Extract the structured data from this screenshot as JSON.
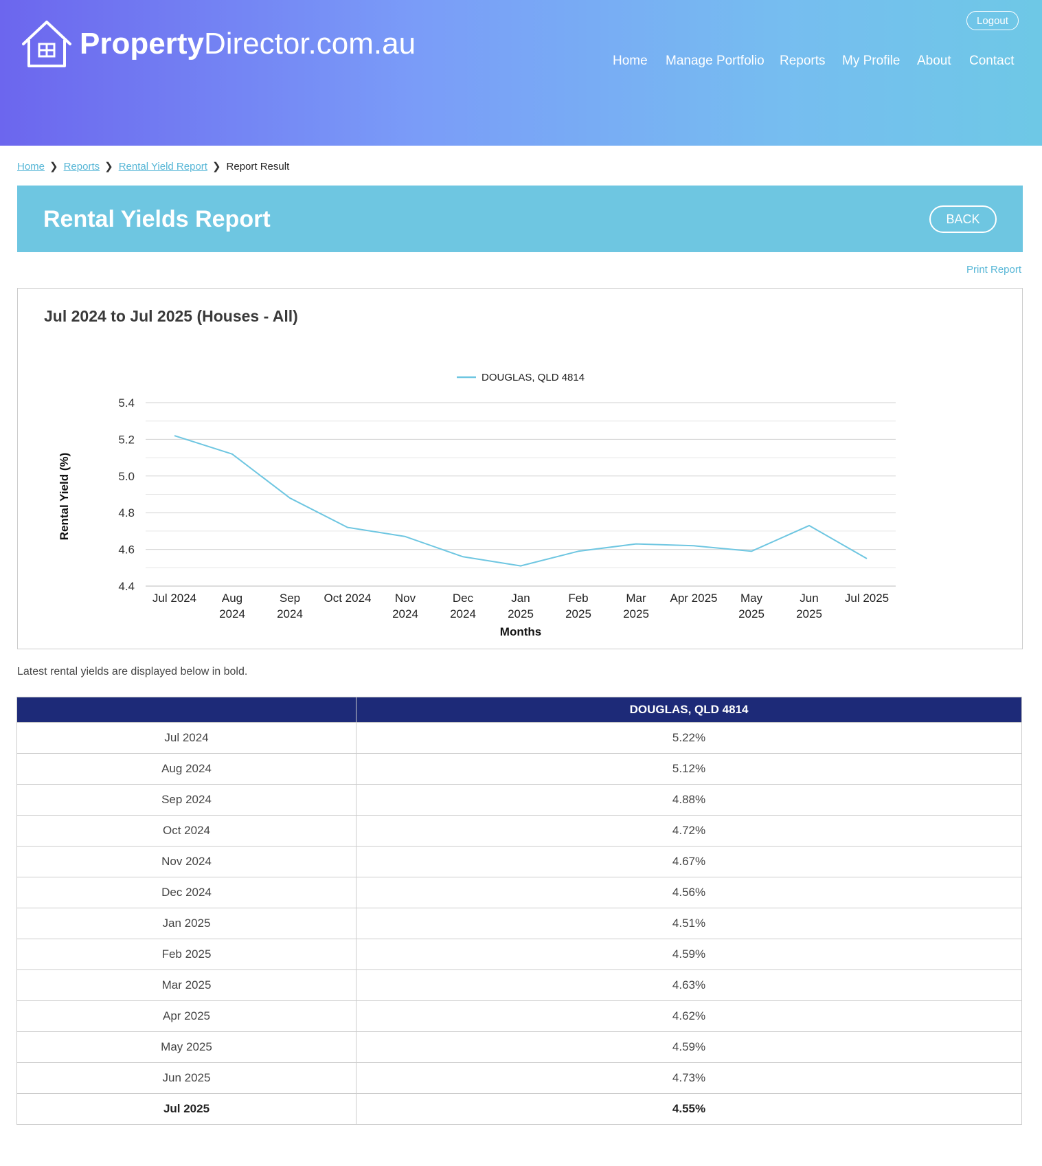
{
  "header": {
    "logo_bold": "Property",
    "logo_light": "Director.com.au",
    "logout_label": "Logout",
    "nav": [
      "Home",
      "Manage Portfolio",
      "Reports",
      "My Profile",
      "About",
      "Contact"
    ]
  },
  "breadcrumb": {
    "links": [
      "Home",
      "Reports",
      "Rental Yield Report"
    ],
    "current": "Report Result"
  },
  "page": {
    "title": "Rental Yields Report",
    "back_label": "BACK",
    "print_label": "Print Report"
  },
  "chart_section": {
    "heading": "Jul 2024 to Jul 2025 (Houses - All)"
  },
  "chart_data": {
    "type": "line",
    "categories": [
      [
        "Jul 2024"
      ],
      [
        "Aug",
        "2024"
      ],
      [
        "Sep",
        "2024"
      ],
      [
        "Oct 2024"
      ],
      [
        "Nov",
        "2024"
      ],
      [
        "Dec",
        "2024"
      ],
      [
        "Jan",
        "2025"
      ],
      [
        "Feb",
        "2025"
      ],
      [
        "Mar",
        "2025"
      ],
      [
        "Apr 2025"
      ],
      [
        "May",
        "2025"
      ],
      [
        "Jun",
        "2025"
      ],
      [
        "Jul 2025"
      ]
    ],
    "series": [
      {
        "name": "DOUGLAS, QLD 4814",
        "color": "#6ec6e1",
        "values": [
          5.22,
          5.12,
          4.88,
          4.72,
          4.67,
          4.56,
          4.51,
          4.59,
          4.63,
          4.62,
          4.59,
          4.73,
          4.55
        ]
      }
    ],
    "xlabel": "Months",
    "ylabel": "Rental Yield (%)",
    "ylim": [
      4.4,
      5.4
    ],
    "yticks": [
      "4.4",
      "4.6",
      "4.8",
      "5.0",
      "5.2",
      "5.4"
    ],
    "grid": true,
    "legend": "top-center"
  },
  "note": "Latest rental yields are displayed below in bold.",
  "table": {
    "header_left": "",
    "header_right": "DOUGLAS, QLD 4814",
    "rows": [
      [
        "Jul 2024",
        "5.22%"
      ],
      [
        "Aug 2024",
        "5.12%"
      ],
      [
        "Sep 2024",
        "4.88%"
      ],
      [
        "Oct 2024",
        "4.72%"
      ],
      [
        "Nov 2024",
        "4.67%"
      ],
      [
        "Dec 2024",
        "4.56%"
      ],
      [
        "Jan 2025",
        "4.51%"
      ],
      [
        "Feb 2025",
        "4.59%"
      ],
      [
        "Mar 2025",
        "4.63%"
      ],
      [
        "Apr 2025",
        "4.62%"
      ],
      [
        "May 2025",
        "4.59%"
      ],
      [
        "Jun 2025",
        "4.73%"
      ],
      [
        "Jul 2025",
        "4.55%"
      ]
    ]
  },
  "colors": {
    "accent": "#6ec6e1",
    "table_header": "#1d2a78",
    "link": "#56b6d6"
  }
}
